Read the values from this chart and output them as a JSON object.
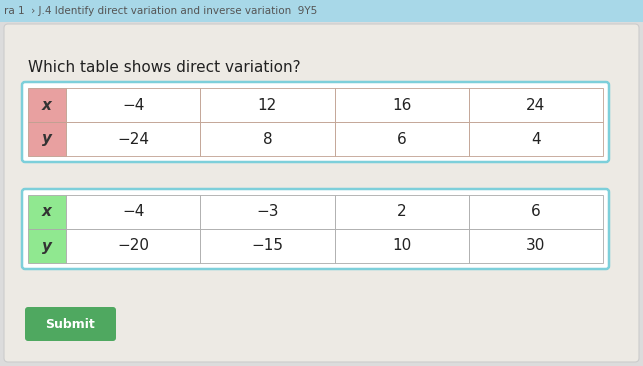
{
  "header_text": "ra 1  › J.4 Identify direct variation and inverse variation  9Y5",
  "question": "Which table shows direct variation?",
  "table1": {
    "rows": [
      [
        "x",
        "−4",
        "12",
        "16",
        "24"
      ],
      [
        "y",
        "−24",
        "8",
        "6",
        "4"
      ]
    ],
    "header_bg": "#e8a0a0",
    "border_color": "#7dcfda",
    "cell_border": "#c0a090"
  },
  "table2": {
    "rows": [
      [
        "x",
        "−4",
        "−3",
        "2",
        "6"
      ],
      [
        "y",
        "−20",
        "−15",
        "10",
        "30"
      ]
    ],
    "header_bg": "#90e890",
    "border_color": "#7dcfda",
    "cell_border": "#aaaaaa"
  },
  "bg_color": "#edeae4",
  "top_bar_color": "#a8d8e8",
  "top_bar_text_color": "#555555",
  "submit_btn_color": "#4fa860",
  "card_bg": "#edeae4",
  "page_bg": "#dcdcdc"
}
